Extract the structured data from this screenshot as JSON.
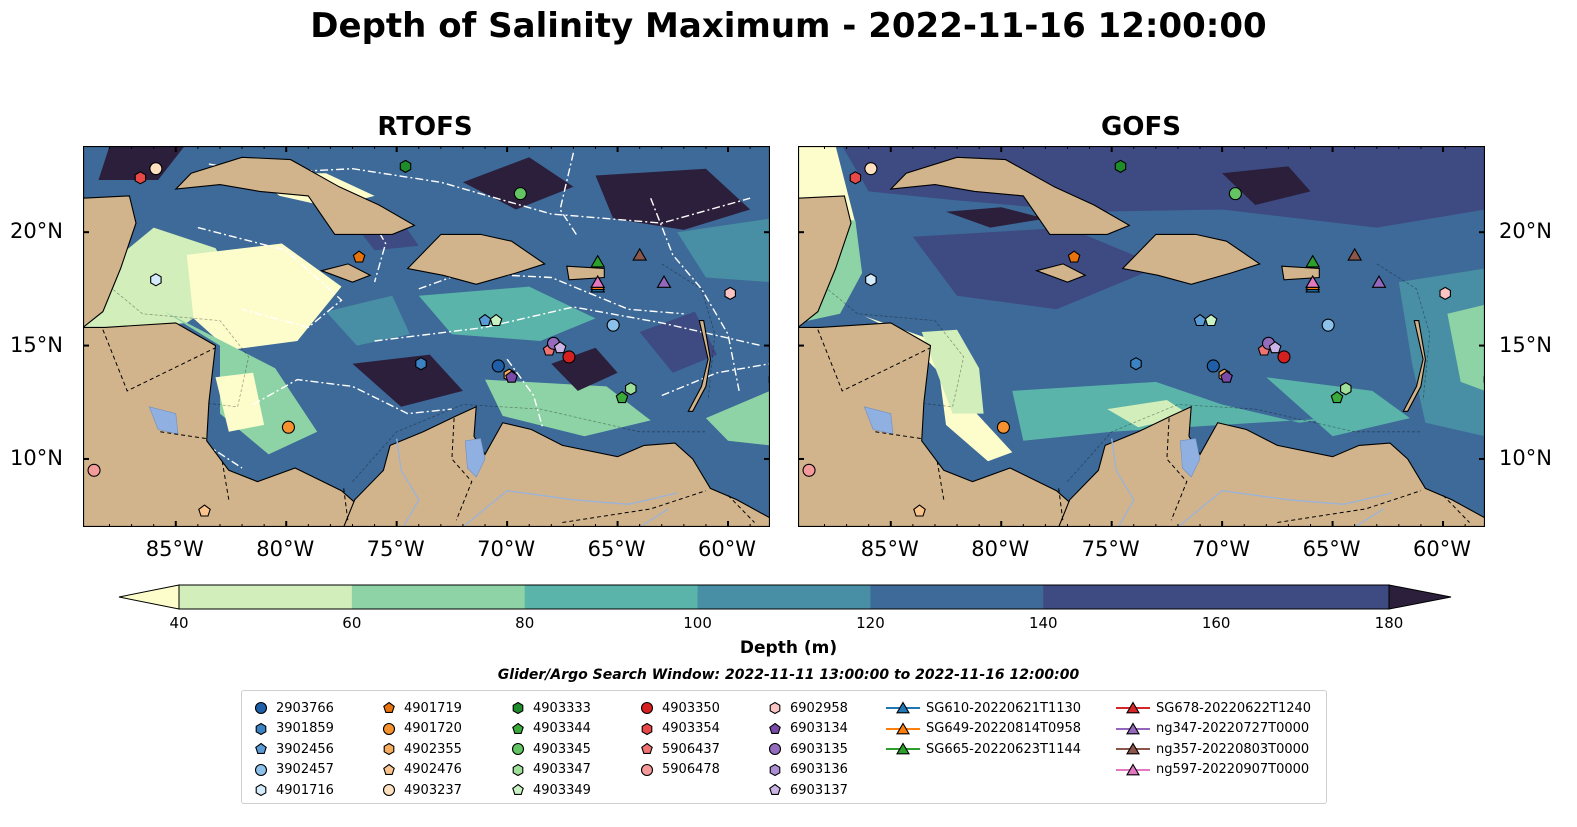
{
  "title": "Depth of Salinity Maximum - 2022-11-16 12:00:00",
  "panels": [
    {
      "title": "RTOFS"
    },
    {
      "title": "GOFS"
    }
  ],
  "axes": {
    "x_ticks": [
      "85°W",
      "80°W",
      "75°W",
      "70°W",
      "65°W",
      "60°W"
    ],
    "y_ticks": [
      "20°N",
      "15°N",
      "10°N"
    ]
  },
  "colorbar": {
    "label": "Depth (m)",
    "ticks": [
      "40",
      "60",
      "80",
      "100",
      "120",
      "140",
      "160",
      "180"
    ],
    "colors": [
      "#fdfdcc",
      "#d2eeba",
      "#8ed3a6",
      "#5bb4a9",
      "#488ea4",
      "#3d6a98",
      "#3e4a82",
      "#2b1f3b"
    ],
    "extend": "both"
  },
  "search_window": "Glider/Argo Search Window: 2022-11-11 13:00:00 to 2022-11-16 12:00:00",
  "land_color": "#d2b48c",
  "lake_color": "#8fb0e0",
  "legend_entries": [
    {
      "label": "2903766",
      "marker": "circle",
      "color": "#1f5fa8"
    },
    {
      "label": "3901859",
      "marker": "hexagon",
      "color": "#3b82c4"
    },
    {
      "label": "3902456",
      "marker": "pentagon",
      "color": "#5b9bd5"
    },
    {
      "label": "3902457",
      "marker": "circle",
      "color": "#8cc1ec"
    },
    {
      "label": "4901716",
      "marker": "hexagon",
      "color": "#d4ebfb"
    },
    {
      "label": "4901719",
      "marker": "pentagon",
      "color": "#e8720c"
    },
    {
      "label": "4901720",
      "marker": "circle",
      "color": "#f5922f"
    },
    {
      "label": "4902355",
      "marker": "hexagon",
      "color": "#f7ad5e"
    },
    {
      "label": "4902476",
      "marker": "pentagon",
      "color": "#fac48c"
    },
    {
      "label": "4903237",
      "marker": "circle",
      "color": "#fde0c0"
    },
    {
      "label": "4903333",
      "marker": "hexagon",
      "color": "#1e8c2a"
    },
    {
      "label": "4903344",
      "marker": "pentagon",
      "color": "#3aaa3a"
    },
    {
      "label": "4903345",
      "marker": "circle",
      "color": "#62c462"
    },
    {
      "label": "4903347",
      "marker": "hexagon",
      "color": "#9ee09a"
    },
    {
      "label": "4903349",
      "marker": "pentagon",
      "color": "#c9f2c4"
    },
    {
      "label": "4903350",
      "marker": "circle",
      "color": "#d62020"
    },
    {
      "label": "4903354",
      "marker": "hexagon",
      "color": "#e84848"
    },
    {
      "label": "5906437",
      "marker": "pentagon",
      "color": "#f07373"
    },
    {
      "label": "5906478",
      "marker": "circle",
      "color": "#f59a9a"
    },
    {
      "label": "6902958",
      "marker": "hexagon",
      "color": "#fbc4c4"
    },
    {
      "label": "6903134",
      "marker": "pentagon",
      "color": "#7a4aa8"
    },
    {
      "label": "6903135",
      "marker": "circle",
      "color": "#946bbd"
    },
    {
      "label": "6903136",
      "marker": "hexagon",
      "color": "#ad8ed2"
    },
    {
      "label": "6903137",
      "marker": "pentagon",
      "color": "#cbb4e6"
    },
    {
      "label": "SG610-20220621T1130",
      "marker": "triangle",
      "color": "#1f77b4"
    },
    {
      "label": "SG649-20220814T0958",
      "marker": "triangle",
      "color": "#ff7f0e"
    },
    {
      "label": "SG665-20220623T1144",
      "marker": "triangle",
      "color": "#2ca02c"
    },
    {
      "label": "SG678-20220622T1240",
      "marker": "triangle",
      "color": "#d62728"
    },
    {
      "label": "ng347-20220727T0000",
      "marker": "triangle",
      "color": "#9467bd"
    },
    {
      "label": "ng357-20220803T0000",
      "marker": "triangle",
      "color": "#8c564b"
    },
    {
      "label": "ng597-20220907T0000",
      "marker": "triangle",
      "color": "#e377c2"
    }
  ],
  "observations": [
    {
      "id": "2903766",
      "lon": -70.4,
      "lat": 14.1
    },
    {
      "id": "3901859",
      "lon": -73.9,
      "lat": 14.2
    },
    {
      "id": "3902456",
      "lon": -71.0,
      "lat": 16.1
    },
    {
      "id": "3902457",
      "lon": -65.2,
      "lat": 15.9
    },
    {
      "id": "4901716",
      "lon": -85.9,
      "lat": 17.9
    },
    {
      "id": "4901719",
      "lon": -76.7,
      "lat": 18.9
    },
    {
      "id": "4901720",
      "lon": -79.9,
      "lat": 11.4
    },
    {
      "id": "4902355",
      "lon": -69.9,
      "lat": 13.7
    },
    {
      "id": "4902476",
      "lon": -83.7,
      "lat": 7.7
    },
    {
      "id": "4903237",
      "lon": -85.9,
      "lat": 22.8
    },
    {
      "id": "4903333",
      "lon": -74.6,
      "lat": 22.9
    },
    {
      "id": "4903344",
      "lon": -64.8,
      "lat": 12.7
    },
    {
      "id": "4903345",
      "lon": -69.4,
      "lat": 21.7
    },
    {
      "id": "4903347",
      "lon": -64.4,
      "lat": 13.1
    },
    {
      "id": "4903349",
      "lon": -70.5,
      "lat": 16.1
    },
    {
      "id": "4903350",
      "lon": -67.2,
      "lat": 14.5
    },
    {
      "id": "4903354",
      "lon": -86.6,
      "lat": 22.4
    },
    {
      "id": "5906437",
      "lon": -68.1,
      "lat": 14.8
    },
    {
      "id": "5906478",
      "lon": -88.7,
      "lat": 9.5
    },
    {
      "id": "6902958",
      "lon": -59.9,
      "lat": 17.3
    },
    {
      "id": "6903134",
      "lon": -69.8,
      "lat": 13.6
    },
    {
      "id": "6903135",
      "lon": -67.9,
      "lat": 15.1
    },
    {
      "id": "6903136",
      "lon": -57.9,
      "lat": 13.5
    },
    {
      "id": "6903137",
      "lon": -67.6,
      "lat": 14.9
    },
    {
      "id": "SG610-20220621T1130",
      "lon": -65.9,
      "lat": 17.6
    },
    {
      "id": "SG649-20220814T0958",
      "lon": -65.9,
      "lat": 17.7
    },
    {
      "id": "SG665-20220623T1144",
      "lon": -65.9,
      "lat": 18.7
    },
    {
      "id": "SG678-20220622T1240",
      "lon": -65.9,
      "lat": 17.8
    },
    {
      "id": "ng347-20220727T0000",
      "lon": -62.9,
      "lat": 17.8
    },
    {
      "id": "ng357-20220803T0000",
      "lon": -64.0,
      "lat": 19.0
    },
    {
      "id": "ng597-20220907T0000",
      "lon": -65.9,
      "lat": 17.8
    }
  ]
}
